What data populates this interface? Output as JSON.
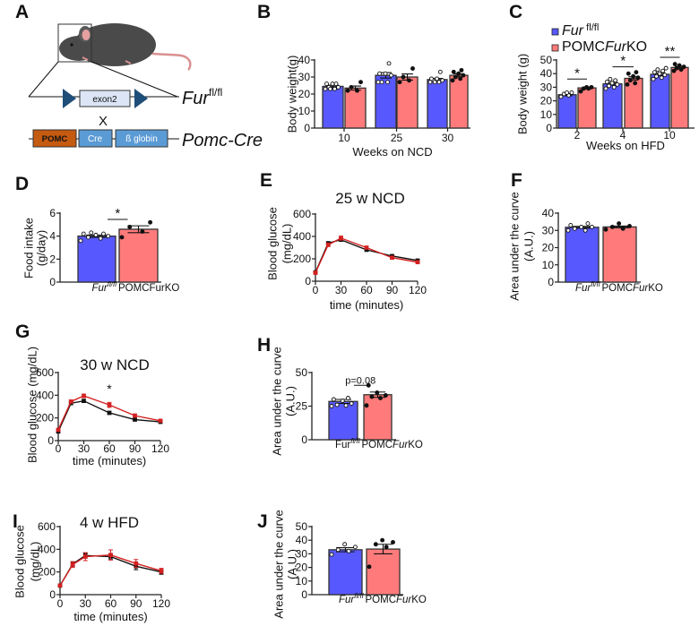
{
  "panel_letters": [
    "A",
    "B",
    "C",
    "D",
    "E",
    "F",
    "G",
    "H",
    "I",
    "J"
  ],
  "diagram": {
    "exon": "exon2",
    "cross": "X",
    "fur_allele": {
      "base": "Fur",
      "sup": "fl/fl"
    },
    "pomc_box": "POMC",
    "cre_box": "Cre",
    "globin_box": "ß globin",
    "pomc_cre": "Pomc-Cre"
  },
  "colors": {
    "control": "#5858ff",
    "ko": "#ff7b7b",
    "control_line": "#111111",
    "ko_line": "#d42020"
  },
  "legend": {
    "control": [
      {
        "t": "Fur",
        "s": "i"
      },
      {
        "t": " fl/fl",
        "s": "sup"
      }
    ],
    "ko": [
      {
        "t": "POMC",
        "s": ""
      },
      {
        "t": "Fur",
        "s": "i"
      },
      {
        "t": "KO",
        "s": ""
      }
    ]
  },
  "chart_data": [
    {
      "panel": "B",
      "type": "bar",
      "ylabel": "Body weight(g)",
      "xlabel": "Weeks on NCD",
      "ylim": [
        0,
        40
      ],
      "yticks": [
        0,
        10,
        20,
        30,
        40
      ],
      "groups": [
        {
          "label": "10",
          "bars": [
            {
              "series": "control",
              "value": 24.5,
              "sem": 0.7,
              "points": [
                23,
                23,
                24,
                24,
                26,
                26,
                26,
                23
              ]
            },
            {
              "series": "ko",
              "value": 23.5,
              "sem": 1.2,
              "points": [
                22,
                22,
                24,
                27
              ]
            }
          ]
        },
        {
          "label": "25",
          "bars": [
            {
              "series": "control",
              "value": 31,
              "sem": 1.6,
              "points": [
                27,
                27,
                27,
                31,
                32,
                32,
                38
              ]
            },
            {
              "series": "ko",
              "value": 30,
              "sem": 1.8,
              "points": [
                27,
                28,
                30,
                35
              ]
            }
          ]
        },
        {
          "label": "30",
          "bars": [
            {
              "series": "control",
              "value": 28.5,
              "sem": 0.7,
              "points": [
                27,
                27,
                28,
                28,
                29,
                29,
                33,
                27
              ]
            },
            {
              "series": "ko",
              "value": 31,
              "sem": 0.9,
              "points": [
                28,
                29,
                30,
                31,
                32,
                33,
                34
              ]
            }
          ]
        }
      ],
      "significance": []
    },
    {
      "panel": "C",
      "type": "bar",
      "ylabel": "Body weight (g)",
      "xlabel": "Weeks on HFD",
      "ylim": [
        0,
        50
      ],
      "yticks": [
        0,
        10,
        20,
        30,
        40,
        50
      ],
      "groups": [
        {
          "label": "2",
          "bars": [
            {
              "series": "control",
              "value": 24.5,
              "sem": 0.8,
              "points": [
                23,
                24,
                25,
                26,
                26
              ]
            },
            {
              "series": "ko",
              "value": 29.5,
              "sem": 0.6,
              "points": [
                27,
                29,
                29,
                30,
                30
              ]
            }
          ]
        },
        {
          "label": "4",
          "bars": [
            {
              "series": "control",
              "value": 32.5,
              "sem": 0.9,
              "points": [
                29,
                30,
                31,
                32,
                33,
                34,
                35,
                36
              ]
            },
            {
              "series": "ko",
              "value": 36.5,
              "sem": 1.2,
              "points": [
                32,
                33,
                35,
                37,
                38,
                40,
                41
              ]
            }
          ]
        },
        {
          "label": "10",
          "bars": [
            {
              "series": "control",
              "value": 39.5,
              "sem": 1.0,
              "points": [
                36,
                37,
                38,
                39,
                40,
                41,
                42,
                43,
                44
              ]
            },
            {
              "series": "ko",
              "value": 44.5,
              "sem": 0.9,
              "points": [
                42,
                43,
                44,
                45,
                46,
                47
              ]
            }
          ]
        }
      ],
      "significance": [
        {
          "group": 0,
          "label": "*",
          "level": 36
        },
        {
          "group": 1,
          "label": "*",
          "level": 45
        },
        {
          "group": 2,
          "label": "**",
          "level": 52
        }
      ]
    },
    {
      "panel": "D",
      "type": "simplebar",
      "ylabel": [
        "Food intake",
        "(g/day)"
      ],
      "ylim": [
        0,
        6
      ],
      "yticks": [
        0,
        2,
        4,
        6
      ],
      "bars": [
        {
          "series": "control",
          "value": 4.0,
          "sem": 0.1,
          "points": [
            3.6,
            3.8,
            3.9,
            4.0,
            4.1,
            4.2,
            4.2,
            4.3
          ],
          "label": [
            {
              "t": "Fur",
              "s": "i"
            },
            {
              "t": "fl/fl",
              "s": "supi"
            }
          ]
        },
        {
          "series": "ko",
          "value": 4.6,
          "sem": 0.3,
          "points": [
            3.9,
            4.4,
            4.8,
            5.2
          ],
          "label": [
            {
              "t": "POMCFurKO",
              "s": ""
            }
          ]
        }
      ],
      "significance": {
        "label": "*",
        "level": 5.45
      }
    },
    {
      "panel": "E",
      "type": "line",
      "title": "25 w NCD",
      "ylabel": [
        "Blood glucose",
        "(mg/dL)"
      ],
      "xlabel": "time (minutes)",
      "ylim": [
        0,
        600
      ],
      "yticks": [
        0,
        200,
        400,
        600
      ],
      "xlim": [
        0,
        120
      ],
      "xticks": [
        0,
        30,
        60,
        90,
        120
      ],
      "x": [
        0,
        15,
        30,
        60,
        90,
        120
      ],
      "series": [
        {
          "name": "control",
          "y": [
            80,
            340,
            370,
            280,
            225,
            185
          ],
          "sem": [
            8,
            12,
            12,
            10,
            10,
            8
          ]
        },
        {
          "name": "ko",
          "y": [
            75,
            325,
            385,
            300,
            210,
            170
          ],
          "sem": [
            8,
            15,
            18,
            12,
            12,
            10
          ]
        }
      ]
    },
    {
      "panel": "F",
      "type": "simplebar",
      "ylabel": [
        "Area under the curve",
        "(A.U.)"
      ],
      "ylim": [
        0,
        40
      ],
      "yticks": [
        0,
        10,
        20,
        30,
        40
      ],
      "bars": [
        {
          "series": "control",
          "value": 31.8,
          "sem": 0.5,
          "points": [
            30,
            30,
            31,
            32,
            32,
            33,
            34
          ]
        },
        {
          "series": "ko",
          "value": 32.0,
          "sem": 0.5,
          "points": [
            30.5,
            31,
            32,
            32.5,
            34
          ]
        }
      ],
      "labels": [
        [
          {
            "t": "Fur",
            "s": "i"
          },
          {
            "t": "fl/fl",
            "s": "supi"
          }
        ],
        [
          {
            "t": "POMC",
            "s": ""
          },
          {
            "t": "Fur",
            "s": "i"
          },
          {
            "t": "KO",
            "s": ""
          }
        ]
      ]
    },
    {
      "panel": "G",
      "type": "line",
      "title": "30 w NCD",
      "ylabel": [
        "Blood glucose (mg/dL)"
      ],
      "xlabel": "time (minutes)",
      "ylim": [
        0,
        600
      ],
      "yticks": [
        0,
        200,
        400,
        600
      ],
      "xlim": [
        0,
        120
      ],
      "xticks": [
        0,
        30,
        60,
        90,
        120
      ],
      "x": [
        0,
        15,
        30,
        60,
        90,
        120
      ],
      "series": [
        {
          "name": "control",
          "y": [
            80,
            330,
            350,
            245,
            185,
            165
          ],
          "sem": [
            8,
            12,
            14,
            14,
            8,
            8
          ]
        },
        {
          "name": "ko",
          "y": [
            95,
            345,
            395,
            315,
            220,
            175
          ],
          "sem": [
            8,
            14,
            16,
            22,
            15,
            8
          ]
        }
      ],
      "annotations": [
        {
          "x": 60,
          "y": 420,
          "label": "*"
        }
      ]
    },
    {
      "panel": "H",
      "type": "simplebar",
      "ylabel": [
        "Area under the curve",
        "(A.U.)"
      ],
      "ylim": [
        0,
        50
      ],
      "yticks": [
        0,
        25,
        50
      ],
      "bars": [
        {
          "series": "control",
          "value": 28.5,
          "sem": 1.5,
          "points": [
            25,
            25.5,
            26,
            27,
            29,
            30,
            31
          ]
        },
        {
          "series": "ko",
          "value": 33.5,
          "sem": 2.0,
          "points": [
            25.5,
            31,
            32,
            33,
            35,
            40.5
          ]
        }
      ],
      "labels": [
        [
          {
            "t": "Fur",
            "s": ""
          },
          {
            "t": "fl/fl",
            "s": "supi"
          }
        ],
        [
          {
            "t": "POMC",
            "s": ""
          },
          {
            "t": "Fur",
            "s": "i"
          },
          {
            "t": "KO",
            "s": ""
          }
        ]
      ],
      "significance": {
        "label": "p=0.08",
        "level": 40.5
      }
    },
    {
      "panel": "I",
      "type": "line",
      "title": "4 w HFD",
      "ylabel": [
        "Blood glucose",
        "(mg/dL)"
      ],
      "xlabel": "time (minutes)",
      "ylim": [
        0,
        600
      ],
      "yticks": [
        0,
        200,
        400,
        600
      ],
      "xlim": [
        0,
        120
      ],
      "xticks": [
        0,
        30,
        60,
        90,
        120
      ],
      "x": [
        0,
        15,
        30,
        60,
        90,
        120
      ],
      "series": [
        {
          "name": "control",
          "y": [
            80,
            270,
            345,
            335,
            250,
            200
          ],
          "sem": [
            6,
            20,
            20,
            25,
            30,
            20
          ]
        },
        {
          "name": "ko",
          "y": [
            80,
            265,
            335,
            350,
            275,
            210
          ],
          "sem": [
            6,
            25,
            35,
            45,
            35,
            22
          ]
        }
      ]
    },
    {
      "panel": "J",
      "type": "simplebar",
      "ylabel": [
        "Area under the curve",
        "(A.U.)"
      ],
      "ylim": [
        0,
        50
      ],
      "yticks": [
        0,
        10,
        20,
        30,
        40,
        50
      ],
      "bars": [
        {
          "series": "control",
          "value": 33,
          "sem": 1.5,
          "points": [
            29.5,
            32,
            33,
            35,
            37
          ]
        },
        {
          "series": "ko",
          "value": 33.5,
          "sem": 3.5,
          "points": [
            20.5,
            35,
            37,
            38.5,
            40
          ]
        }
      ],
      "labels": [
        [
          {
            "t": "Fur",
            "s": "i"
          },
          {
            "t": "fl/fl",
            "s": "supi"
          }
        ],
        [
          {
            "t": "POMC",
            "s": ""
          },
          {
            "t": "Fur",
            "s": "i"
          },
          {
            "t": "KO",
            "s": ""
          }
        ]
      ]
    }
  ]
}
